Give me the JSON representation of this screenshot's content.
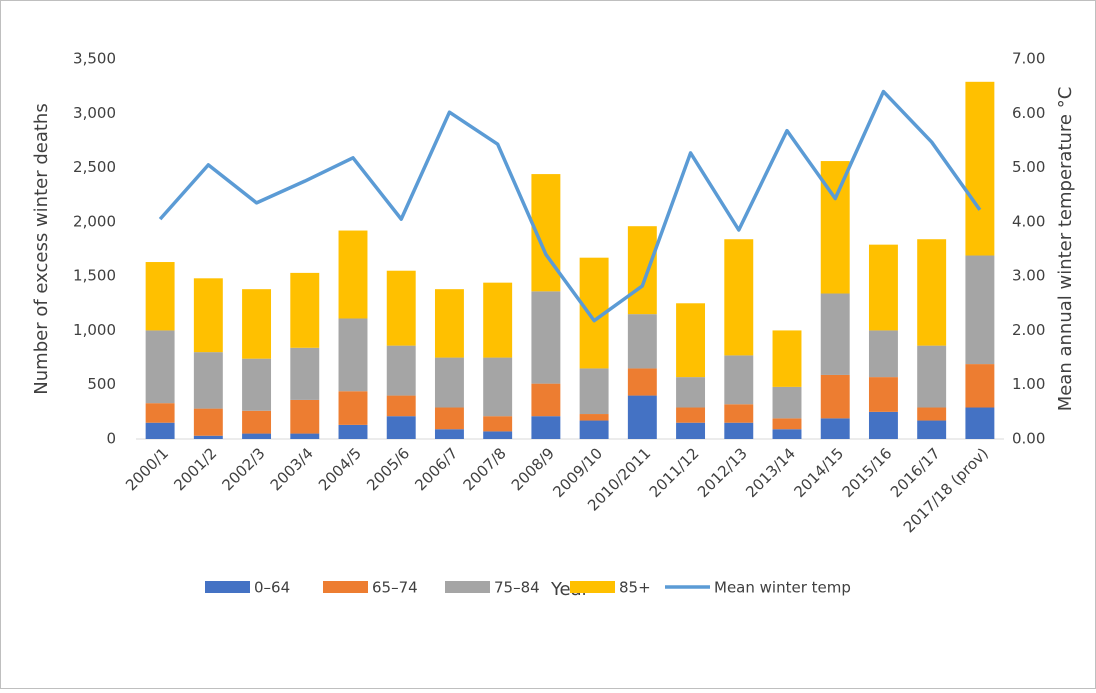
{
  "chart_data": {
    "type": "bar",
    "stacked": true,
    "xlabel": "Year",
    "ylabel": "Number of excess winter deaths",
    "y2label": "Mean annual winter temperature °C",
    "categories": [
      "2000/1",
      "2001/2",
      "2002/3",
      "2003/4",
      "2004/5",
      "2005/6",
      "2006/7",
      "2007/8",
      "2008/9",
      "2009/10",
      "2010/2011",
      "2011/12",
      "2012/13",
      "2013/14",
      "2014/15",
      "2015/16",
      "2016/17",
      "2017/18 (prov)"
    ],
    "series": [
      {
        "name": "0–64",
        "color": "#4472c4",
        "values": [
          150,
          30,
          50,
          50,
          130,
          210,
          90,
          70,
          210,
          170,
          400,
          150,
          150,
          90,
          190,
          250,
          170,
          290
        ]
      },
      {
        "name": "65–74",
        "color": "#ed7d31",
        "values": [
          180,
          250,
          210,
          310,
          310,
          190,
          200,
          140,
          300,
          60,
          250,
          140,
          170,
          100,
          400,
          320,
          120,
          400
        ]
      },
      {
        "name": "75–84",
        "color": "#a5a5a5",
        "values": [
          670,
          520,
          480,
          480,
          670,
          460,
          460,
          540,
          850,
          420,
          500,
          280,
          450,
          290,
          750,
          430,
          570,
          1000
        ]
      },
      {
        "name": "85+",
        "color": "#ffc000",
        "values": [
          630,
          680,
          640,
          690,
          810,
          690,
          630,
          690,
          1080,
          1020,
          810,
          680,
          1070,
          520,
          1220,
          790,
          980,
          1600
        ]
      },
      {
        "name": "Mean winter temp",
        "color": "#5b9bd5",
        "type": "line",
        "axis": "y2",
        "values": [
          4.05,
          5.05,
          4.35,
          4.75,
          5.18,
          4.05,
          6.02,
          5.43,
          3.4,
          2.18,
          2.82,
          5.27,
          3.85,
          5.68,
          4.43,
          6.4,
          5.47,
          4.22
        ]
      }
    ],
    "ylim": [
      0,
      3500
    ],
    "yticks": [
      0,
      500,
      {
        "value": 1000,
        "label": "1,000"
      },
      {
        "value": 1500,
        "label": "1,500"
      },
      {
        "value": 2000,
        "label": "2,000"
      },
      {
        "value": 2500,
        "label": "2,500"
      },
      {
        "value": 3000,
        "label": "3,000"
      },
      {
        "value": 3500,
        "label": "3,500"
      }
    ],
    "y2lim": [
      0,
      7
    ],
    "y2ticks": [
      {
        "value": 0,
        "label": "0.00"
      },
      {
        "value": 1,
        "label": "1.00"
      },
      {
        "value": 2,
        "label": "2.00"
      },
      {
        "value": 3,
        "label": "3.00"
      },
      {
        "value": 4,
        "label": "4.00"
      },
      {
        "value": 5,
        "label": "5.00"
      },
      {
        "value": 6,
        "label": "6.00"
      },
      {
        "value": 7,
        "label": "7.00"
      }
    ],
    "legend": "bottom",
    "grid": false
  }
}
